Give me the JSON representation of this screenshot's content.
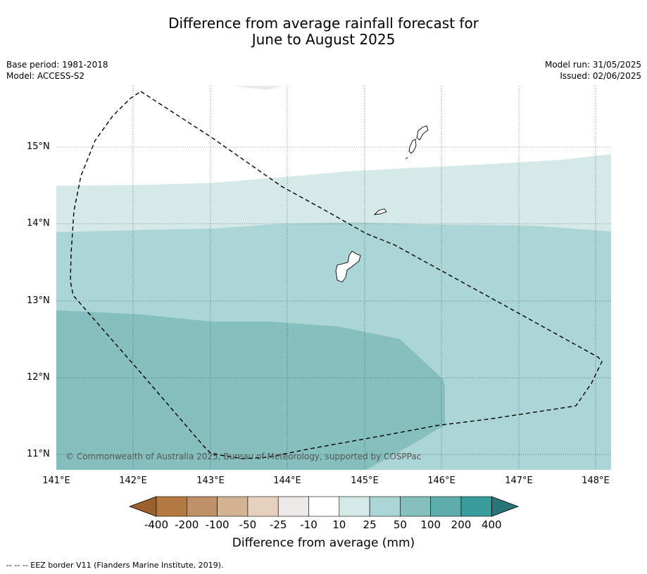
{
  "title_line1": "Difference from average rainfall forecast for",
  "title_line2": "June to August 2025",
  "base_period": "Base period: 1981-2018",
  "model": "Model: ACCESS-S2",
  "model_run": "Model run: 31/05/2025",
  "issued": "Issued: 02/06/2025",
  "lat_labels": [
    "15°N",
    "14°N",
    "13°N",
    "12°N",
    "11°N"
  ],
  "lon_labels": [
    "141°E",
    "142°E",
    "143°E",
    "144°E",
    "145°E",
    "146°E",
    "147°E",
    "148°E"
  ],
  "copyright": "© Commonwealth of Australia 2025, Bureau of Meteorology, supported by COSPPac",
  "colorbar": {
    "ticks": [
      "-400",
      "-200",
      "-100",
      "-50",
      "-25",
      "-10",
      "10",
      "25",
      "50",
      "100",
      "200",
      "400"
    ],
    "colors": [
      "#9c5f2e",
      "#b27a42",
      "#c09068",
      "#d4b393",
      "#e6d0be",
      "#ece9e6",
      "#ffffff",
      "#d4e9e8",
      "#acd5d5",
      "#85c0bf",
      "#5eadac",
      "#379c9b",
      "#277574"
    ],
    "label": "Difference from average (mm)"
  },
  "legend_footer": "--  --  -- EEZ border V11 (Flanders Marine Institute, 2019)."
}
